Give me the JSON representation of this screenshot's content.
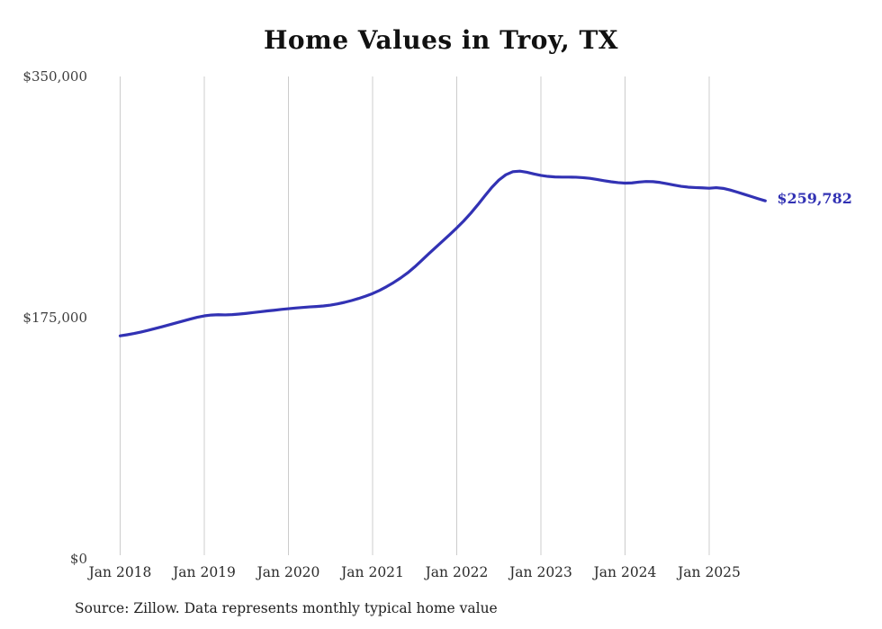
{
  "page": {
    "source_note": "Source: Zillow. Data represents monthly typical home value"
  },
  "colors": {
    "line": "#3232b4",
    "end_label": "#3232b4",
    "grid": "#cccccc",
    "title": "#111111"
  },
  "chart_data": {
    "type": "line",
    "title": "Home Values in Troy, TX",
    "xlabel": "",
    "ylabel": "",
    "ylim": [
      0,
      350000
    ],
    "grid": "vertical-only",
    "legend": "none",
    "end_label": "$259,782",
    "end_value": 259782,
    "frequency": "monthly",
    "y_ticks": [
      {
        "label": "$0",
        "value": 0
      },
      {
        "label": "$175,000",
        "value": 175000
      },
      {
        "label": "$350,000",
        "value": 350000
      }
    ],
    "x_tick_labels": [
      "Jan 2018",
      "Jan 2019",
      "Jan 2020",
      "Jan 2021",
      "Jan 2022",
      "Jan 2023",
      "Jan 2024",
      "Jan 2025"
    ],
    "series": [
      {
        "name": "Typical home value",
        "x": [
          "2018-01",
          "2018-02",
          "2018-03",
          "2018-04",
          "2018-05",
          "2018-06",
          "2018-07",
          "2018-08",
          "2018-09",
          "2018-10",
          "2018-11",
          "2018-12",
          "2019-01",
          "2019-02",
          "2019-03",
          "2019-04",
          "2019-05",
          "2019-06",
          "2019-07",
          "2019-08",
          "2019-09",
          "2019-10",
          "2019-11",
          "2019-12",
          "2020-01",
          "2020-02",
          "2020-03",
          "2020-04",
          "2020-05",
          "2020-06",
          "2020-07",
          "2020-08",
          "2020-09",
          "2020-10",
          "2020-11",
          "2020-12",
          "2021-01",
          "2021-02",
          "2021-03",
          "2021-04",
          "2021-05",
          "2021-06",
          "2021-07",
          "2021-08",
          "2021-09",
          "2021-10",
          "2021-11",
          "2021-12",
          "2022-01",
          "2022-02",
          "2022-03",
          "2022-04",
          "2022-05",
          "2022-06",
          "2022-07",
          "2022-08",
          "2022-09",
          "2022-10",
          "2022-11",
          "2022-12",
          "2023-01",
          "2023-02",
          "2023-03",
          "2023-04",
          "2023-05",
          "2023-06",
          "2023-07",
          "2023-08",
          "2023-09",
          "2023-10",
          "2023-11",
          "2023-12",
          "2024-01",
          "2024-02",
          "2024-03",
          "2024-04",
          "2024-05",
          "2024-06",
          "2024-07",
          "2024-08",
          "2024-09",
          "2024-10",
          "2024-11",
          "2024-12",
          "2025-01",
          "2025-02",
          "2025-03",
          "2025-04",
          "2025-05",
          "2025-06",
          "2025-07",
          "2025-08",
          "2025-09"
        ],
        "values": [
          161800,
          162600,
          163500,
          164600,
          165800,
          167100,
          168400,
          169800,
          171200,
          172600,
          174000,
          175300,
          176300,
          176900,
          177100,
          177000,
          177200,
          177600,
          178100,
          178700,
          179300,
          179900,
          180400,
          181000,
          181500,
          182000,
          182400,
          182800,
          183100,
          183500,
          184100,
          185000,
          186100,
          187400,
          188900,
          190600,
          192500,
          194800,
          197500,
          200500,
          203800,
          207500,
          211800,
          216500,
          221300,
          226000,
          230600,
          235300,
          240100,
          245200,
          250800,
          256900,
          263300,
          269500,
          274800,
          278700,
          280900,
          281300,
          280500,
          279300,
          278200,
          277500,
          277100,
          277000,
          277000,
          276900,
          276600,
          276100,
          275300,
          274400,
          273600,
          273000,
          272600,
          272800,
          273400,
          273800,
          273700,
          273100,
          272200,
          271200,
          270300,
          269700,
          269400,
          269200,
          268900,
          269300,
          268800,
          267600,
          266100,
          264500,
          262900,
          261300,
          259782
        ]
      }
    ]
  }
}
